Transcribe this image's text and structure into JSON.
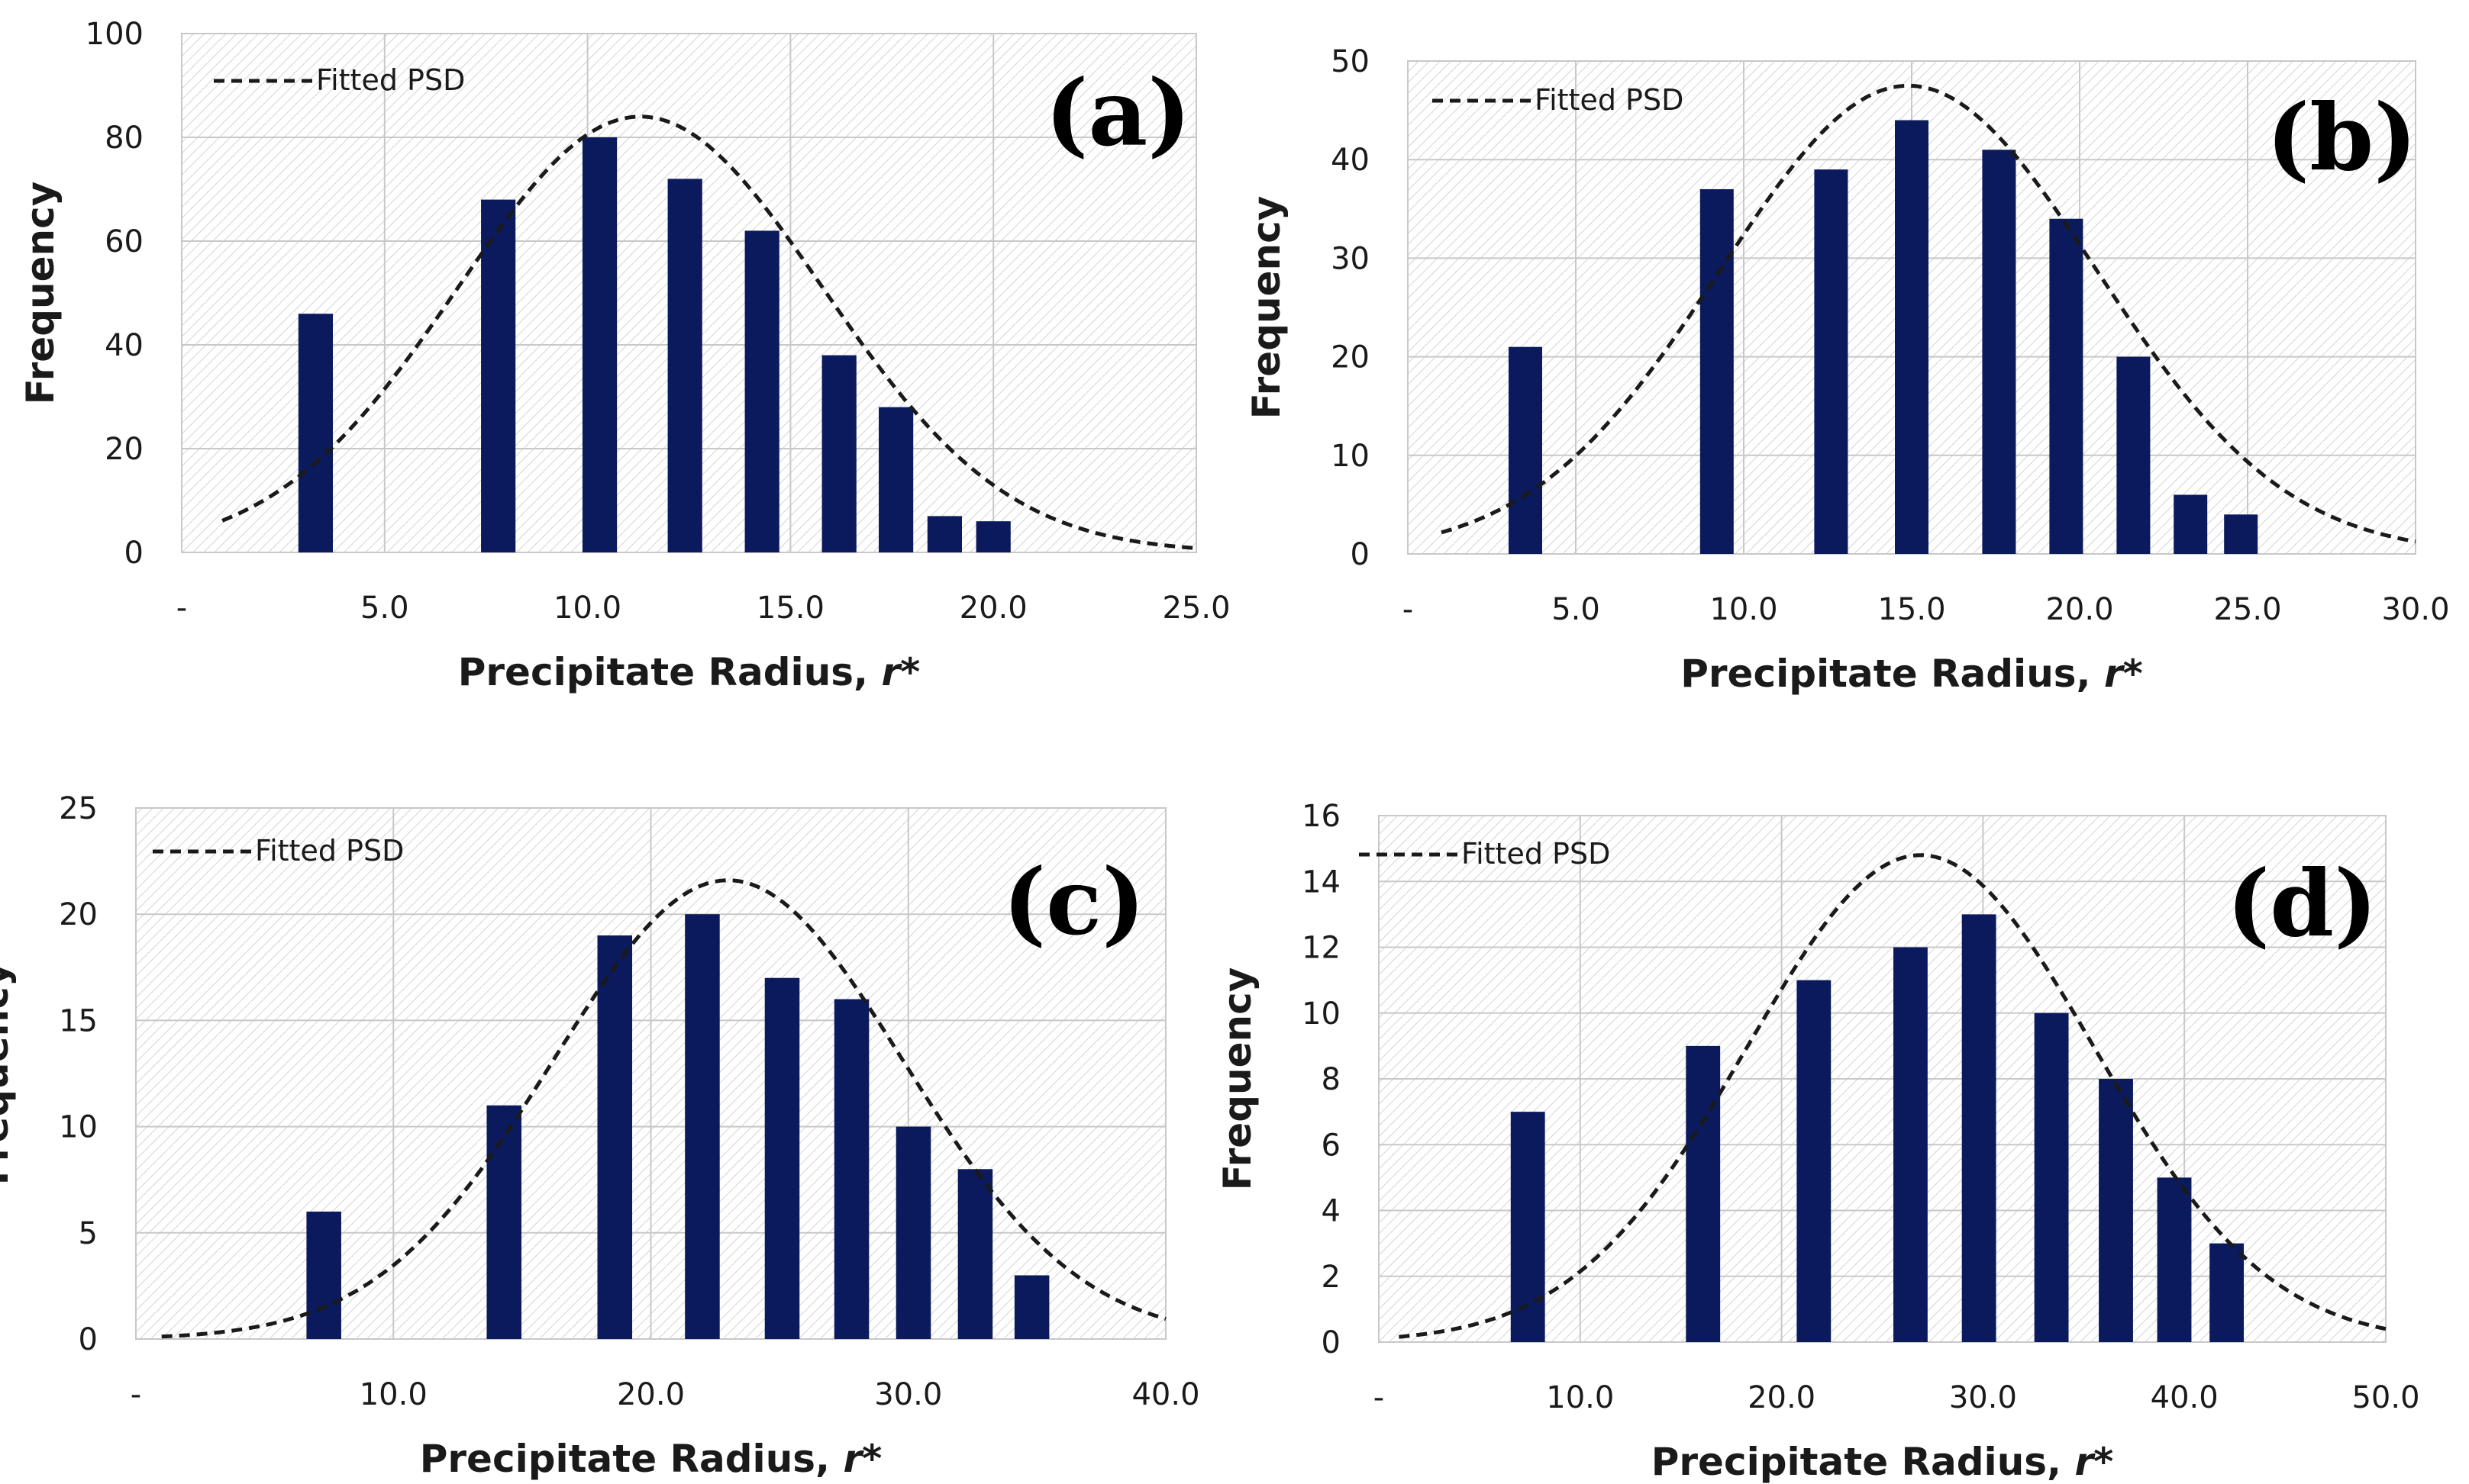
{
  "colors": {
    "bar": "#0b1a5c",
    "curve": "#1a1a1a",
    "grid": "#c8c8c8",
    "hatch": "#d4d4d4"
  },
  "chart_data": [
    {
      "panel": "(a)",
      "type": "bar",
      "title": "",
      "xlabel": "Precipitate Radius, ",
      "xlabel_italic": "r*",
      "ylabel": "Frequency",
      "xlim": [
        0,
        25
      ],
      "ylim": [
        0,
        100
      ],
      "x_ticks": [
        0,
        5,
        10,
        15,
        20,
        25
      ],
      "x_tick_labels": [
        "-",
        "5.0",
        "10.0",
        "15.0",
        "20.0",
        "25.0"
      ],
      "y_ticks": [
        0,
        20,
        40,
        60,
        80,
        100
      ],
      "y_tick_labels": [
        "0",
        "20",
        "40",
        "60",
        "80",
        "100"
      ],
      "bar_width": 0.85,
      "x": [
        3.3,
        7.8,
        10.3,
        12.4,
        14.3,
        16.2,
        17.6,
        18.8,
        20.0
      ],
      "values": [
        46,
        68,
        80,
        72,
        62,
        38,
        28,
        7,
        6
      ],
      "legend": "Fitted PSD",
      "fit": {
        "amp": 84,
        "mu": 11.3,
        "sigma": 4.5,
        "x_range": [
          1,
          25
        ]
      }
    },
    {
      "panel": "(b)",
      "type": "bar",
      "title": "",
      "xlabel": "Precipitate Radius, ",
      "xlabel_italic": "r*",
      "ylabel": "Frequency",
      "xlim": [
        0,
        30
      ],
      "ylim": [
        0,
        50
      ],
      "x_ticks": [
        0,
        5,
        10,
        15,
        20,
        25,
        30
      ],
      "x_tick_labels": [
        "-",
        "5.0",
        "10.0",
        "15.0",
        "20.0",
        "25.0",
        "30.0"
      ],
      "y_ticks": [
        0,
        10,
        20,
        30,
        40,
        50
      ],
      "y_tick_labels": [
        "0",
        "10",
        "20",
        "30",
        "40",
        "50"
      ],
      "bar_width": 1.0,
      "x": [
        3.5,
        9.2,
        12.6,
        15.0,
        17.6,
        19.6,
        21.6,
        23.3,
        24.8
      ],
      "values": [
        21,
        37,
        39,
        44,
        41,
        34,
        20,
        6,
        4
      ],
      "legend": "Fitted PSD",
      "fit": {
        "amp": 47.5,
        "mu": 14.9,
        "sigma": 5.6,
        "x_range": [
          1,
          30
        ]
      }
    },
    {
      "panel": "(c)",
      "type": "bar",
      "title": "",
      "xlabel": "Precipitate Radius, ",
      "xlabel_italic": "r*",
      "ylabel": "Frequency",
      "xlim": [
        0,
        40
      ],
      "ylim": [
        0,
        25
      ],
      "x_ticks": [
        0,
        10,
        20,
        30,
        40
      ],
      "x_tick_labels": [
        "-",
        "10.0",
        "20.0",
        "30.0",
        "40.0"
      ],
      "y_ticks": [
        0,
        5,
        10,
        15,
        20,
        25
      ],
      "y_tick_labels": [
        "0",
        "5",
        "10",
        "15",
        "20",
        "25"
      ],
      "bar_width": 1.35,
      "x": [
        7.3,
        14.3,
        18.6,
        22.0,
        25.1,
        27.8,
        30.2,
        32.6,
        34.8
      ],
      "values": [
        6,
        11,
        19,
        20,
        17,
        16,
        10,
        8,
        3
      ],
      "legend": "Fitted PSD",
      "fit": {
        "amp": 21.6,
        "mu": 23.0,
        "sigma": 6.8,
        "x_range": [
          1,
          40
        ]
      }
    },
    {
      "panel": "(d)",
      "type": "bar",
      "title": "",
      "xlabel": "Precipitate Radius, ",
      "xlabel_italic": "r*",
      "ylabel": "Frequency",
      "xlim": [
        0,
        50
      ],
      "ylim": [
        0,
        16
      ],
      "x_ticks": [
        0,
        10,
        20,
        30,
        40,
        50
      ],
      "x_tick_labels": [
        "-",
        "10.0",
        "20.0",
        "30.0",
        "40.0",
        "50.0"
      ],
      "y_ticks": [
        0,
        2,
        4,
        6,
        8,
        10,
        12,
        14,
        16
      ],
      "y_tick_labels": [
        "0",
        "2",
        "4",
        "6",
        "8",
        "10",
        "12",
        "14",
        "16"
      ],
      "bar_width": 1.7,
      "x": [
        7.4,
        16.1,
        21.6,
        26.4,
        29.8,
        33.4,
        36.6,
        39.5,
        42.1
      ],
      "values": [
        7,
        9,
        11,
        12,
        13,
        10,
        8,
        5,
        3
      ],
      "legend": "Fitted PSD",
      "fit": {
        "amp": 14.8,
        "mu": 26.9,
        "sigma": 8.6,
        "x_range": [
          1,
          50
        ]
      }
    }
  ]
}
